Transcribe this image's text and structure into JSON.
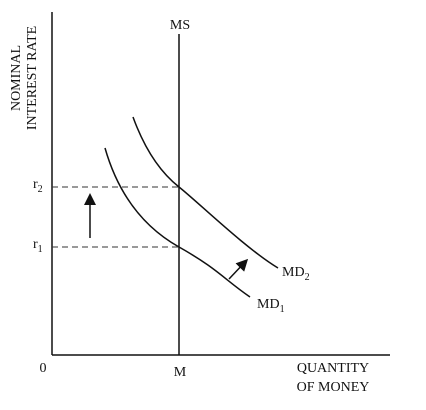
{
  "axes": {
    "y_label": [
      "NOMINAL",
      "INTEREST RATE"
    ],
    "x_label": [
      "QUANTITY",
      "OF MONEY"
    ],
    "origin": "0"
  },
  "supply": {
    "label": "MS",
    "quantity": "M"
  },
  "demand": [
    {
      "label": "MD",
      "sub": "1"
    },
    {
      "label": "MD",
      "sub": "2"
    }
  ],
  "rates": [
    {
      "label": "r",
      "sub": "1"
    },
    {
      "label": "r",
      "sub": "2"
    }
  ]
}
